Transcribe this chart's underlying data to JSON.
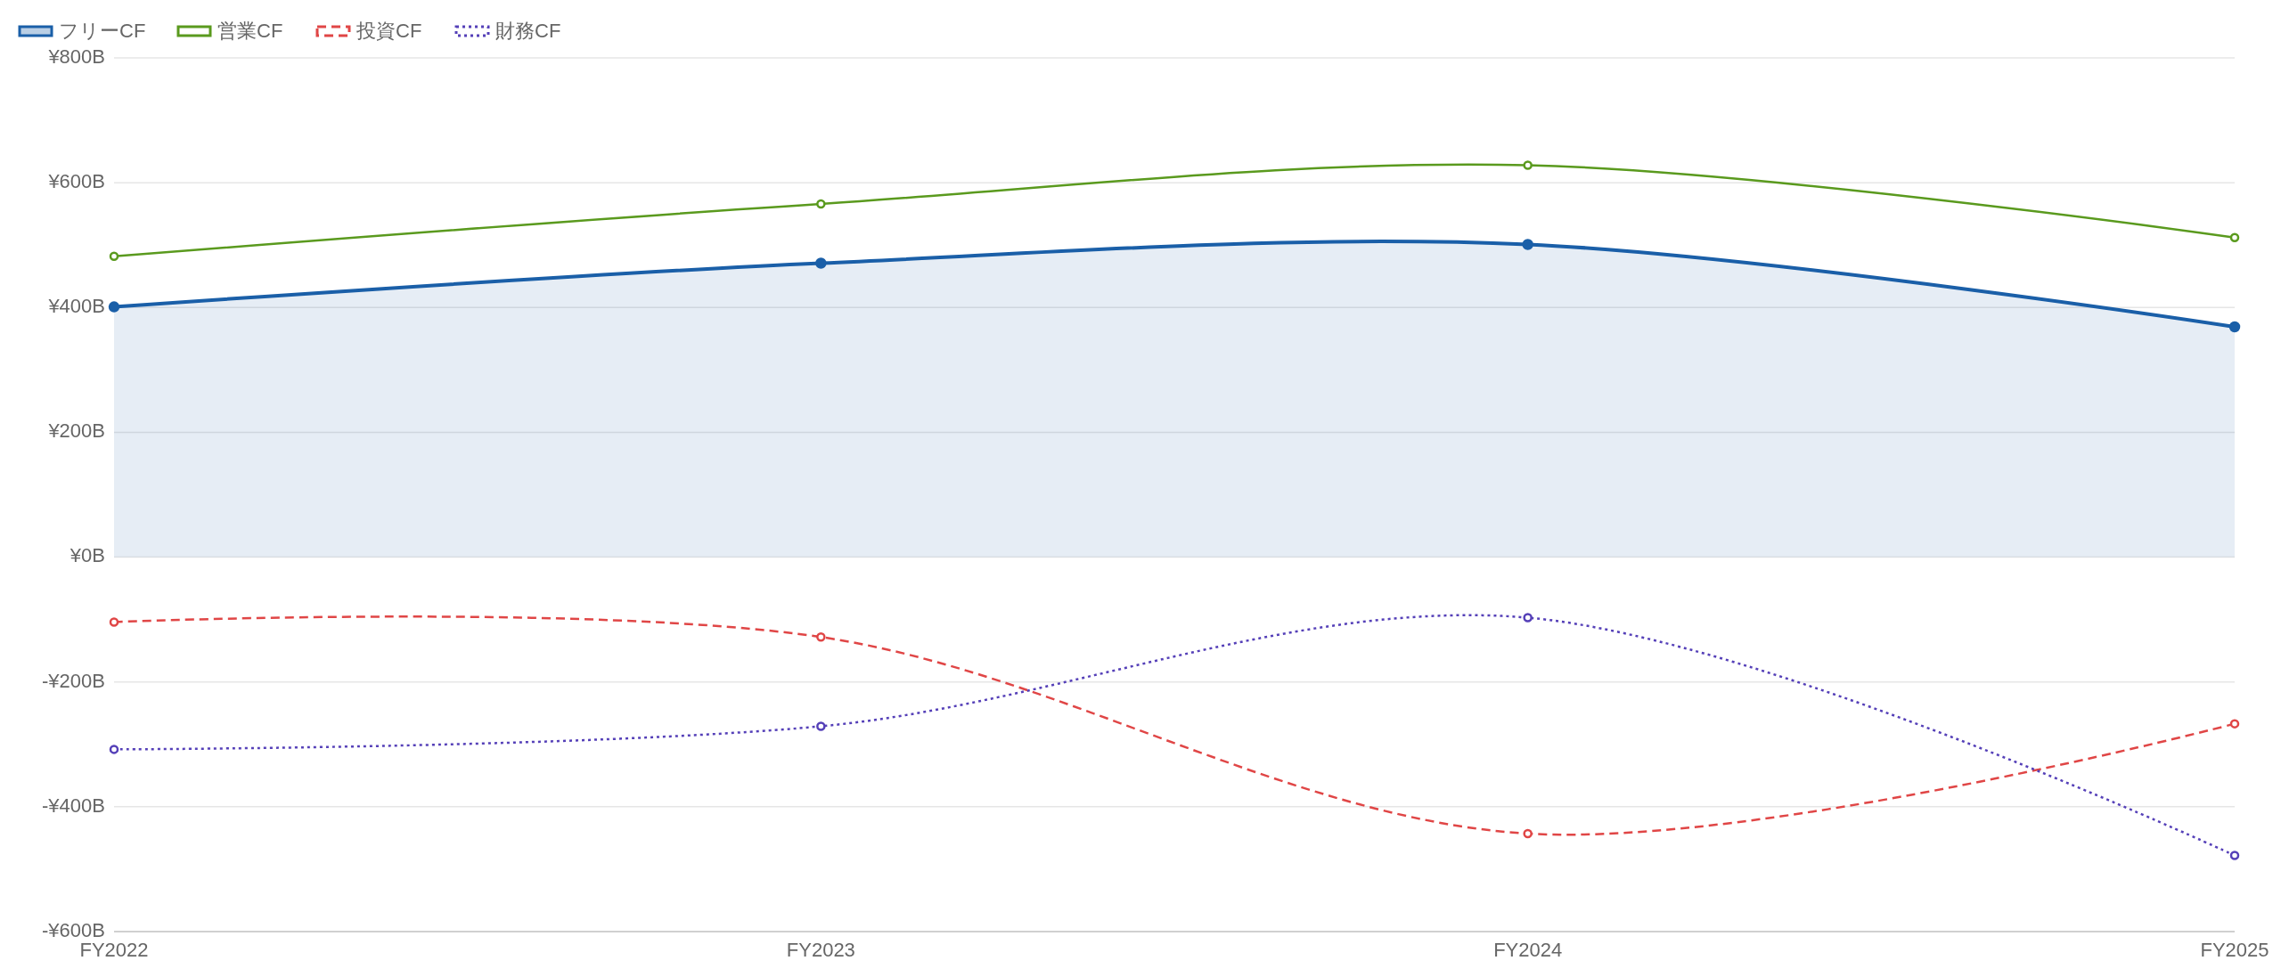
{
  "chart_data": {
    "type": "line",
    "categories": [
      "FY2022",
      "FY2023",
      "FY2024",
      "FY2025"
    ],
    "series": [
      {
        "name": "フリーCF",
        "type": "area",
        "color": "#1a5fa8",
        "line_style": "solid",
        "values": [
          401,
          471,
          501,
          369
        ]
      },
      {
        "name": "営業CF",
        "type": "line",
        "color": "#5a9a1e",
        "line_style": "solid",
        "values": [
          482,
          566,
          628,
          512
        ]
      },
      {
        "name": "投資CF",
        "type": "line",
        "color": "#e04646",
        "line_style": "dashed",
        "values": [
          -104,
          -128,
          -443,
          -267
        ]
      },
      {
        "name": "財務CF",
        "type": "line",
        "color": "#5540b8",
        "line_style": "dotted",
        "values": [
          -308,
          -271,
          -97,
          -478
        ]
      }
    ],
    "ylim": [
      -600,
      800
    ],
    "yticks": [
      {
        "value": -600,
        "label": "-¥600B"
      },
      {
        "value": -400,
        "label": "-¥400B"
      },
      {
        "value": -200,
        "label": "-¥200B"
      },
      {
        "value": 0,
        "label": "¥0B"
      },
      {
        "value": 200,
        "label": "¥200B"
      },
      {
        "value": 400,
        "label": "¥400B"
      },
      {
        "value": 600,
        "label": "¥600B"
      },
      {
        "value": 800,
        "label": "¥800B"
      }
    ],
    "grid": "y",
    "legend": "top left",
    "marker": "circle"
  }
}
